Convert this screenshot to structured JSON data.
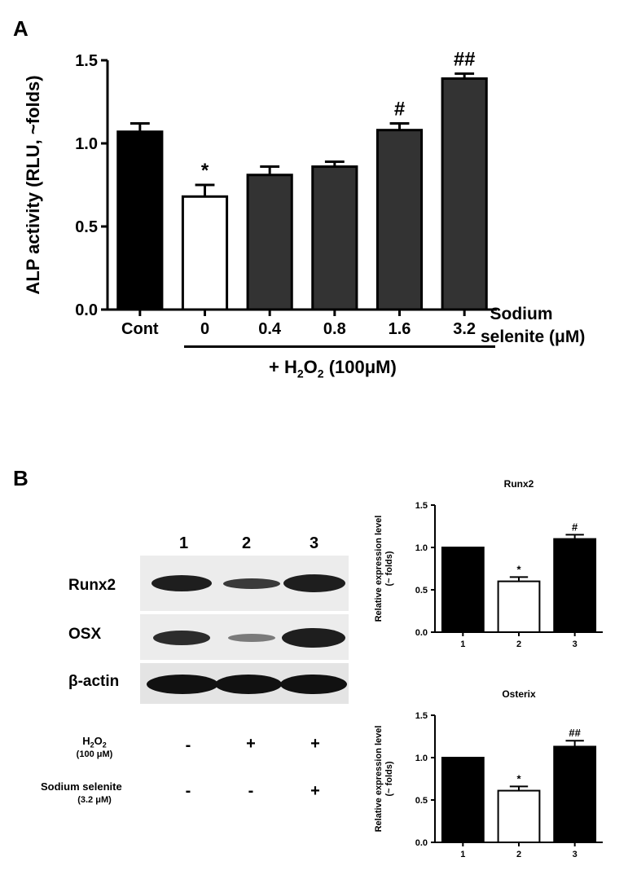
{
  "panel_a": {
    "letter": "A",
    "x_extra_label_line1": "Sodium",
    "x_extra_label_line2": "selenite (μM)",
    "treatment_prefix": "+ H",
    "treatment_sub": "2",
    "treatment_mid": "O",
    "treatment_sub2": "2",
    "treatment_suffix": " (100μM)"
  },
  "panel_b": {
    "letter": "B",
    "lane_numbers": [
      "1",
      "2",
      "3"
    ],
    "blot_labels": [
      "Runx2",
      "OSX",
      "β-actin"
    ],
    "h2o2_label_a": "H",
    "h2o2_label_sub": "2",
    "h2o2_label_b": "O",
    "h2o2_label_sub2": "2",
    "h2o2_conc": "(100 μM)",
    "h2o2_signs": [
      "-",
      "+",
      "+"
    ],
    "selenite_label": "Sodium selenite",
    "selenite_conc": "(3.2 μM)",
    "selenite_signs": [
      "-",
      "-",
      "+"
    ]
  },
  "colors": {
    "black": "#000000",
    "dark_gray": "#333333",
    "white": "#ffffff"
  },
  "chart_data": [
    {
      "type": "bar",
      "ylabel": "ALP activity (RLU, ~folds)",
      "xlabel": "",
      "categories": [
        "Cont",
        "0",
        "0.4",
        "0.8",
        "1.6",
        "3.2"
      ],
      "values": [
        1.07,
        0.68,
        0.81,
        0.86,
        1.08,
        1.39
      ],
      "errors": [
        0.05,
        0.07,
        0.05,
        0.03,
        0.04,
        0.03
      ],
      "annotations": [
        "",
        "*",
        "",
        "",
        "#",
        "##"
      ],
      "bar_colors": [
        "#000000",
        "#ffffff",
        "#333333",
        "#333333",
        "#333333",
        "#333333"
      ],
      "ylim": [
        0,
        1.5
      ],
      "yticks": [
        "0.0",
        "0.5",
        "1.0",
        "1.5"
      ],
      "grid": false
    },
    {
      "type": "bar",
      "title": "Runx2",
      "ylabel": "Relative expression level (~ folds)",
      "categories": [
        "1",
        "2",
        "3"
      ],
      "values": [
        1.0,
        0.6,
        1.1
      ],
      "errors": [
        0.0,
        0.05,
        0.05
      ],
      "annotations": [
        "",
        "*",
        "#"
      ],
      "bar_colors": [
        "#000000",
        "#ffffff",
        "#000000"
      ],
      "ylim": [
        0,
        1.5
      ],
      "yticks": [
        "0.0",
        "0.5",
        "1.0",
        "1.5"
      ],
      "grid": false
    },
    {
      "type": "bar",
      "title": "Osterix",
      "ylabel": "Relative expression level (~ folds)",
      "categories": [
        "1",
        "2",
        "3"
      ],
      "values": [
        1.0,
        0.61,
        1.13
      ],
      "errors": [
        0.0,
        0.05,
        0.07
      ],
      "annotations": [
        "",
        "*",
        "##"
      ],
      "bar_colors": [
        "#000000",
        "#ffffff",
        "#000000"
      ],
      "ylim": [
        0,
        1.5
      ],
      "yticks": [
        "0.0",
        "0.5",
        "1.0",
        "1.5"
      ],
      "grid": false
    }
  ]
}
